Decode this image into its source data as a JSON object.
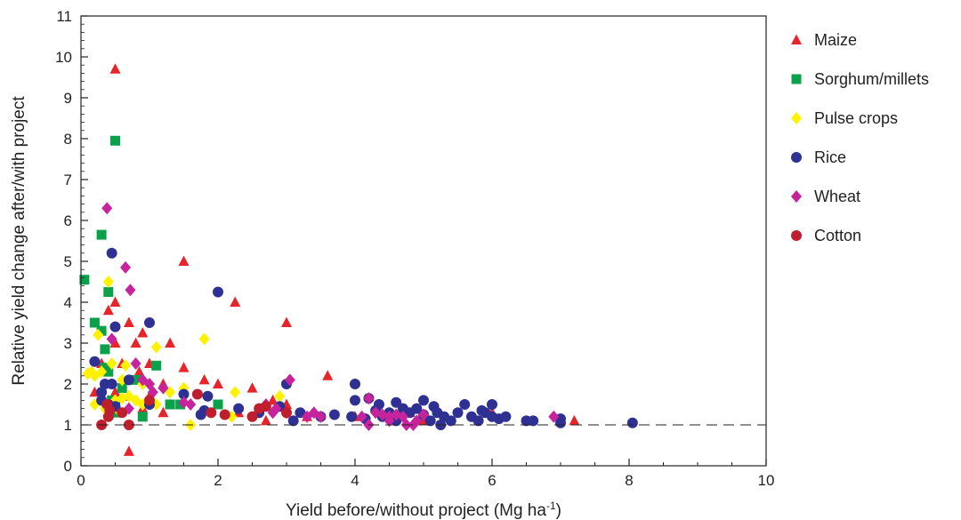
{
  "chart_data": {
    "type": "scatter",
    "title": "",
    "xlabel": "Yield before/without project (Mg ha",
    "xlabel_sup": "-1",
    "xlabel_end": ")",
    "ylabel": "Relative yield change after/with project",
    "xlim": [
      0,
      10
    ],
    "ylim": [
      0,
      11
    ],
    "xticks": [
      "0",
      "2",
      "4",
      "6",
      "8",
      "10"
    ],
    "yticks": [
      "0",
      "1",
      "2",
      "3",
      "4",
      "5",
      "6",
      "7",
      "8",
      "9",
      "10",
      "11"
    ],
    "reference_line": {
      "y": 1.0,
      "style": "dashed"
    },
    "grid": false,
    "legend_position": "right",
    "series": [
      {
        "name": "Maize",
        "marker": "triangle",
        "color": "#e8242b",
        "points": [
          [
            0.5,
            9.7
          ],
          [
            1.5,
            5.0
          ],
          [
            0.5,
            4.0
          ],
          [
            0.4,
            3.8
          ],
          [
            2.25,
            4.0
          ],
          [
            3.0,
            3.5
          ],
          [
            1.3,
            3.0
          ],
          [
            0.7,
            3.5
          ],
          [
            0.5,
            3.0
          ],
          [
            0.9,
            3.25
          ],
          [
            0.8,
            3.0
          ],
          [
            0.3,
            2.5
          ],
          [
            0.6,
            2.5
          ],
          [
            1.0,
            2.5
          ],
          [
            1.5,
            2.4
          ],
          [
            0.85,
            2.3
          ],
          [
            1.8,
            2.1
          ],
          [
            1.2,
            2.0
          ],
          [
            0.2,
            1.8
          ],
          [
            0.5,
            1.8
          ],
          [
            0.7,
            1.7
          ],
          [
            1.0,
            1.7
          ],
          [
            1.3,
            1.5
          ],
          [
            1.5,
            1.6
          ],
          [
            2.0,
            2.0
          ],
          [
            2.5,
            1.9
          ],
          [
            2.8,
            1.6
          ],
          [
            3.0,
            1.5
          ],
          [
            2.3,
            1.3
          ],
          [
            1.2,
            1.3
          ],
          [
            0.9,
            1.4
          ],
          [
            3.6,
            2.2
          ],
          [
            4.0,
            1.2
          ],
          [
            4.8,
            1.3
          ],
          [
            6.0,
            1.3
          ],
          [
            7.2,
            1.1
          ],
          [
            0.7,
            0.35
          ],
          [
            2.7,
            1.1
          ],
          [
            3.3,
            1.2
          ],
          [
            5.0,
            1.1
          ]
        ]
      },
      {
        "name": "Sorghum/millets",
        "marker": "square",
        "color": "#0ba14b",
        "points": [
          [
            0.05,
            4.55
          ],
          [
            0.5,
            7.95
          ],
          [
            0.3,
            5.65
          ],
          [
            0.4,
            4.25
          ],
          [
            0.2,
            3.5
          ],
          [
            0.3,
            3.3
          ],
          [
            0.35,
            2.85
          ],
          [
            0.4,
            2.3
          ],
          [
            0.35,
            2.4
          ],
          [
            1.1,
            2.45
          ],
          [
            0.8,
            2.1
          ],
          [
            0.6,
            1.9
          ],
          [
            0.5,
            1.5
          ],
          [
            0.5,
            1.3
          ],
          [
            1.3,
            1.5
          ],
          [
            1.45,
            1.5
          ],
          [
            2.0,
            1.5
          ],
          [
            0.9,
            1.2
          ],
          [
            0.45,
            1.6
          ]
        ]
      },
      {
        "name": "Pulse crops",
        "marker": "diamond",
        "color": "#fff200",
        "points": [
          [
            0.4,
            4.5
          ],
          [
            0.25,
            3.2
          ],
          [
            0.45,
            2.5
          ],
          [
            0.3,
            2.3
          ],
          [
            0.15,
            2.3
          ],
          [
            0.2,
            2.2
          ],
          [
            0.1,
            2.25
          ],
          [
            0.6,
            2.1
          ],
          [
            0.65,
            2.45
          ],
          [
            1.1,
            2.9
          ],
          [
            1.8,
            3.1
          ],
          [
            0.9,
            2.0
          ],
          [
            1.3,
            1.8
          ],
          [
            1.5,
            1.9
          ],
          [
            1.1,
            1.5
          ],
          [
            0.5,
            1.6
          ],
          [
            0.7,
            1.7
          ],
          [
            0.8,
            1.6
          ],
          [
            0.2,
            1.5
          ],
          [
            0.35,
            1.4
          ],
          [
            0.9,
            1.5
          ],
          [
            2.25,
            1.8
          ],
          [
            2.9,
            1.7
          ],
          [
            1.6,
            1.0
          ],
          [
            2.2,
            1.2
          ],
          [
            0.55,
            1.35
          ],
          [
            0.6,
            1.65
          ]
        ]
      },
      {
        "name": "Rice",
        "marker": "circle",
        "color": "#2e3192",
        "points": [
          [
            0.45,
            5.2
          ],
          [
            2.0,
            4.25
          ],
          [
            1.0,
            3.5
          ],
          [
            0.5,
            3.4
          ],
          [
            0.2,
            2.55
          ],
          [
            0.35,
            2.0
          ],
          [
            0.3,
            1.8
          ],
          [
            0.45,
            2.0
          ],
          [
            0.3,
            1.6
          ],
          [
            0.4,
            1.5
          ],
          [
            0.5,
            1.45
          ],
          [
            0.7,
            2.1
          ],
          [
            1.0,
            1.5
          ],
          [
            1.5,
            1.75
          ],
          [
            1.85,
            1.7
          ],
          [
            1.8,
            1.35
          ],
          [
            2.3,
            1.4
          ],
          [
            2.9,
            1.45
          ],
          [
            3.0,
            2.0
          ],
          [
            3.2,
            1.3
          ],
          [
            3.5,
            1.2
          ],
          [
            3.7,
            1.25
          ],
          [
            4.0,
            2.0
          ],
          [
            4.0,
            1.6
          ],
          [
            4.2,
            1.65
          ],
          [
            4.3,
            1.35
          ],
          [
            4.4,
            1.2
          ],
          [
            4.5,
            1.3
          ],
          [
            4.6,
            1.55
          ],
          [
            4.7,
            1.4
          ],
          [
            4.8,
            1.3
          ],
          [
            4.9,
            1.4
          ],
          [
            5.0,
            1.6
          ],
          [
            5.0,
            1.25
          ],
          [
            5.1,
            1.1
          ],
          [
            5.2,
            1.3
          ],
          [
            5.3,
            1.2
          ],
          [
            5.4,
            1.1
          ],
          [
            5.5,
            1.3
          ],
          [
            5.6,
            1.5
          ],
          [
            5.7,
            1.2
          ],
          [
            5.8,
            1.1
          ],
          [
            5.9,
            1.3
          ],
          [
            6.0,
            1.5
          ],
          [
            6.0,
            1.2
          ],
          [
            6.1,
            1.15
          ],
          [
            6.5,
            1.1
          ],
          [
            6.6,
            1.1
          ],
          [
            7.0,
            1.15
          ],
          [
            7.0,
            1.05
          ],
          [
            8.05,
            1.05
          ],
          [
            4.15,
            1.15
          ],
          [
            4.6,
            1.1
          ],
          [
            5.25,
            1.0
          ],
          [
            3.95,
            1.2
          ],
          [
            3.1,
            1.1
          ],
          [
            2.6,
            1.3
          ],
          [
            1.75,
            1.25
          ],
          [
            4.35,
            1.5
          ],
          [
            5.15,
            1.45
          ],
          [
            5.85,
            1.35
          ],
          [
            6.2,
            1.2
          ]
        ]
      },
      {
        "name": "Wheat",
        "marker": "diamond",
        "color": "#c6239d",
        "points": [
          [
            0.38,
            6.3
          ],
          [
            0.65,
            4.85
          ],
          [
            0.72,
            4.3
          ],
          [
            0.45,
            3.1
          ],
          [
            0.8,
            2.5
          ],
          [
            0.9,
            2.1
          ],
          [
            1.0,
            2.0
          ],
          [
            1.05,
            1.8
          ],
          [
            1.2,
            1.9
          ],
          [
            1.6,
            1.5
          ],
          [
            0.7,
            1.4
          ],
          [
            3.05,
            2.1
          ],
          [
            2.7,
            1.5
          ],
          [
            2.8,
            1.3
          ],
          [
            2.85,
            1.4
          ],
          [
            3.0,
            1.3
          ],
          [
            3.3,
            1.2
          ],
          [
            3.4,
            1.3
          ],
          [
            3.5,
            1.2
          ],
          [
            4.1,
            1.2
          ],
          [
            4.2,
            1.65
          ],
          [
            4.3,
            1.3
          ],
          [
            4.4,
            1.25
          ],
          [
            4.5,
            1.2
          ],
          [
            4.6,
            1.25
          ],
          [
            4.7,
            1.2
          ],
          [
            4.75,
            1.0
          ],
          [
            4.85,
            1.0
          ],
          [
            4.9,
            1.1
          ],
          [
            5.0,
            1.25
          ],
          [
            6.9,
            1.2
          ],
          [
            4.2,
            1.0
          ],
          [
            4.5,
            1.1
          ],
          [
            1.5,
            1.55
          ]
        ]
      },
      {
        "name": "Cotton",
        "marker": "circle",
        "color": "#be1e2d",
        "points": [
          [
            0.3,
            1.0
          ],
          [
            0.7,
            1.0
          ],
          [
            0.38,
            1.5
          ],
          [
            0.42,
            1.35
          ],
          [
            0.6,
            1.3
          ],
          [
            1.7,
            1.75
          ],
          [
            1.9,
            1.3
          ],
          [
            2.1,
            1.25
          ],
          [
            2.5,
            1.2
          ],
          [
            2.6,
            1.4
          ],
          [
            2.7,
            1.45
          ],
          [
            3.0,
            1.3
          ],
          [
            1.0,
            1.6
          ],
          [
            0.4,
            1.2
          ]
        ]
      }
    ]
  }
}
